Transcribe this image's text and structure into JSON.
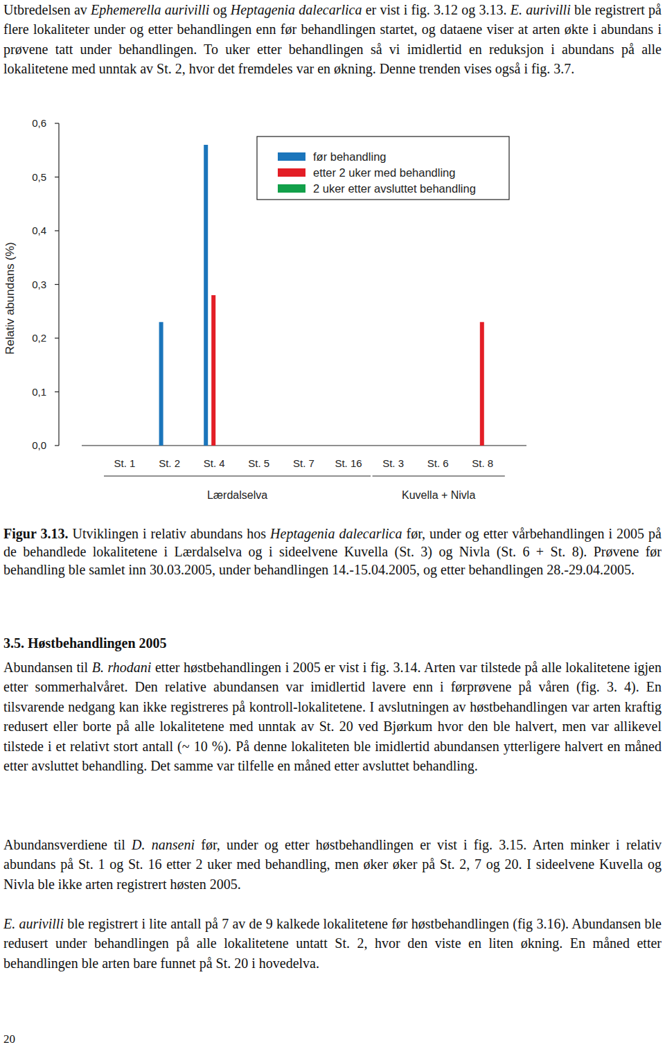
{
  "intro": {
    "runs": [
      {
        "text": "Utbredelsen av "
      },
      {
        "text": "Ephemerella aurivilli",
        "italic": true
      },
      {
        "text": " og  "
      },
      {
        "text": "Heptagenia dalecarlica",
        "italic": true
      },
      {
        "text": " er vist i fig. 3.12 og 3.13. "
      },
      {
        "text": "E. aurivilli",
        "italic": true
      },
      {
        "text": " ble registrert på flere lokaliteter under og etter behandlingen enn før behandlingen startet, og dataene viser at arten økte i abundans i prøvene tatt under behandlingen. To uker etter behandlingen så vi imidlertid en reduksjon i abundans på alle lokalitetene med unntak av St. 2, hvor det fremdeles var en økning. Denne trenden vises også i fig. 3.7."
      }
    ]
  },
  "chart_data": {
    "type": "bar",
    "y_label": "Relativ abundans (%)",
    "categories": [
      "St. 1",
      "St. 2",
      "St. 4",
      "St. 5",
      "St. 7",
      "St. 16",
      "St. 3",
      "St. 6",
      "St. 8"
    ],
    "category_groups": [
      {
        "label": "Lærdalselva",
        "from": 0,
        "to": 5
      },
      {
        "label": "Kuvella + Nivla",
        "from": 6,
        "to": 8
      }
    ],
    "series": [
      {
        "name": "før behandling",
        "color": "#1b75bb",
        "values": [
          0,
          0.23,
          0.56,
          0,
          0,
          0,
          0,
          0,
          0
        ]
      },
      {
        "name": "etter 2 uker med behandling",
        "color": "#e31e26",
        "values": [
          0,
          0,
          0.28,
          0,
          0,
          0,
          0,
          0,
          0.23
        ]
      },
      {
        "name": "2 uker etter avsluttet behandling",
        "color": "#12a04a",
        "values": [
          0,
          0,
          0,
          0,
          0,
          0,
          0,
          0,
          0
        ]
      }
    ],
    "ylim": [
      0,
      0.6
    ],
    "yticks": [
      {
        "value": 0,
        "label": "0,0"
      },
      {
        "value": 0.1,
        "label": "0,1"
      },
      {
        "value": 0.2,
        "label": "0,2"
      },
      {
        "value": 0.3,
        "label": "0,3"
      },
      {
        "value": 0.4,
        "label": "0,4"
      },
      {
        "value": 0.5,
        "label": "0,5"
      },
      {
        "value": 0.6,
        "label": "0,6"
      }
    ],
    "grid": false,
    "legend": "top-right"
  },
  "caption": {
    "runs": [
      {
        "text": "Figur 3.13.",
        "bold": true
      },
      {
        "text": " Utviklingen i relativ abundans hos "
      },
      {
        "text": "Heptagenia dalecarlica",
        "italic": true
      },
      {
        "text": " før, under og etter vårbehandlingen i 2005 på de behandlede lokalitetene i Lærdalselva og i sideelvene Kuvella (St. 3) og Nivla (St. 6 + St. 8). Prøvene før behandling ble samlet inn 30.03.2005, under behandlingen 14.-15.04.2005, og etter behandlingen 28.-29.04.2005."
      }
    ]
  },
  "section": {
    "heading": "3.5. Høstbehandlingen 2005",
    "paragraphs": [
      {
        "runs": [
          {
            "text": "Abundansen til "
          },
          {
            "text": "B. rhodani",
            "italic": true
          },
          {
            "text": " etter høstbehandlingen i 2005 er vist i fig. 3.14. Arten var tilstede på alle lokalitetene igjen etter sommerhalvåret. Den relative abundansen var imidlertid lavere enn i førprøvene på våren (fig. 3. 4). En tilsvarende nedgang kan ikke registreres på kontroll-lokalitetene. I avslutningen av høstbehandlingen var arten kraftig redusert eller borte på alle lokalitetene med unntak av St. 20 ved Bjørkum hvor den ble halvert, men var allikevel tilstede i et relativt stort antall (~ 10 %). På denne lokaliteten ble imidlertid abundansen ytterligere halvert en måned etter avsluttet behandling. Det samme var tilfelle en måned etter avsluttet behandling."
          }
        ]
      },
      {
        "runs": [
          {
            "text": "Abundansverdiene til "
          },
          {
            "text": "D. nanseni",
            "italic": true
          },
          {
            "text": "  før, under og etter høstbehandlingen er vist i fig. 3.15. Arten minker i relativ abundans på St. 1 og St. 16 etter 2 uker med behandling, men øker øker på St. 2, 7 og 20. I sideelvene Kuvella og Nivla ble ikke arten registrert høsten 2005."
          }
        ]
      },
      {
        "runs": [
          {
            "text": "E. aurivilli",
            "italic": true
          },
          {
            "text": " ble registrert i lite antall på 7 av de 9 kalkede lokalitetene før høstbehandlingen (fig 3.16). Abundansen ble redusert under behandlingen på alle lokalitetene untatt St. 2, hvor den viste en liten økning. En måned etter behandlingen ble arten bare funnet på St. 20 i hovedelva."
          }
        ]
      }
    ]
  },
  "page_number": "20"
}
